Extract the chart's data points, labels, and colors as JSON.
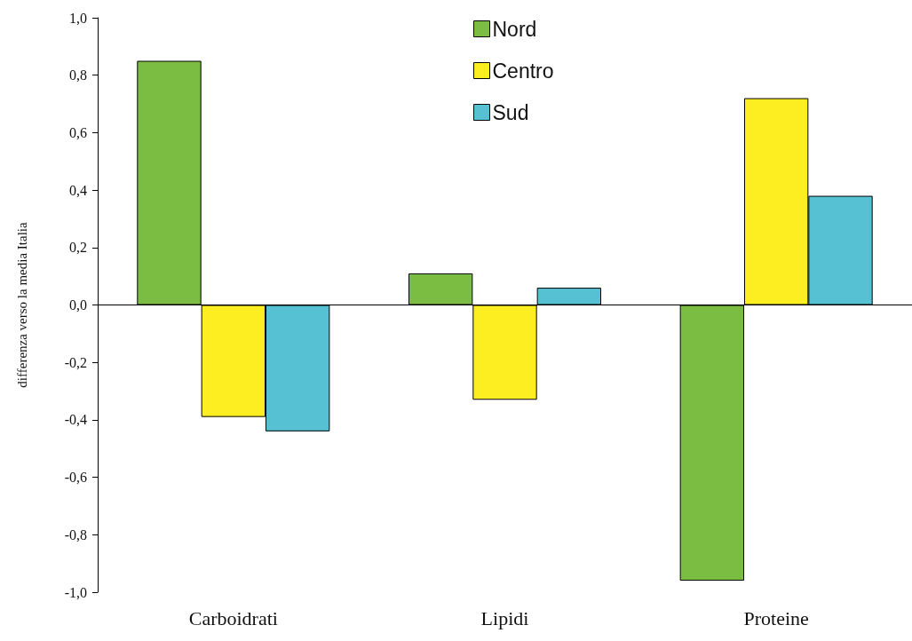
{
  "chart_data": {
    "type": "bar",
    "ylabel": "differenza verso la media Italia",
    "categories": [
      "Carboidrati",
      "Lipidi",
      "Proteine"
    ],
    "series": [
      {
        "name": "Nord",
        "color": "#7bbd42",
        "values": [
          0.85,
          0.11,
          -0.96
        ]
      },
      {
        "name": "Centro",
        "color": "#fcee21",
        "values": [
          -0.39,
          -0.33,
          0.72
        ]
      },
      {
        "name": "Sud",
        "color": "#56c1d2",
        "values": [
          -0.44,
          0.06,
          0.38
        ]
      }
    ],
    "ylim": [
      -1.0,
      1.0
    ],
    "yticks": [
      {
        "value": -1.0,
        "label": "-1,0"
      },
      {
        "value": -0.8,
        "label": "-0,8"
      },
      {
        "value": -0.6,
        "label": "-0,6"
      },
      {
        "value": -0.4,
        "label": "-0,4"
      },
      {
        "value": -0.2,
        "label": "-0,2"
      },
      {
        "value": 0,
        "label": "0,0"
      },
      {
        "value": 0.2,
        "label": "0,2"
      },
      {
        "value": 0.4,
        "label": "0,4"
      },
      {
        "value": 0.6,
        "label": "0,6"
      },
      {
        "value": 0.8,
        "label": "0,8"
      },
      {
        "value": 1.0,
        "label": "1,0"
      }
    ],
    "legend": "top"
  }
}
